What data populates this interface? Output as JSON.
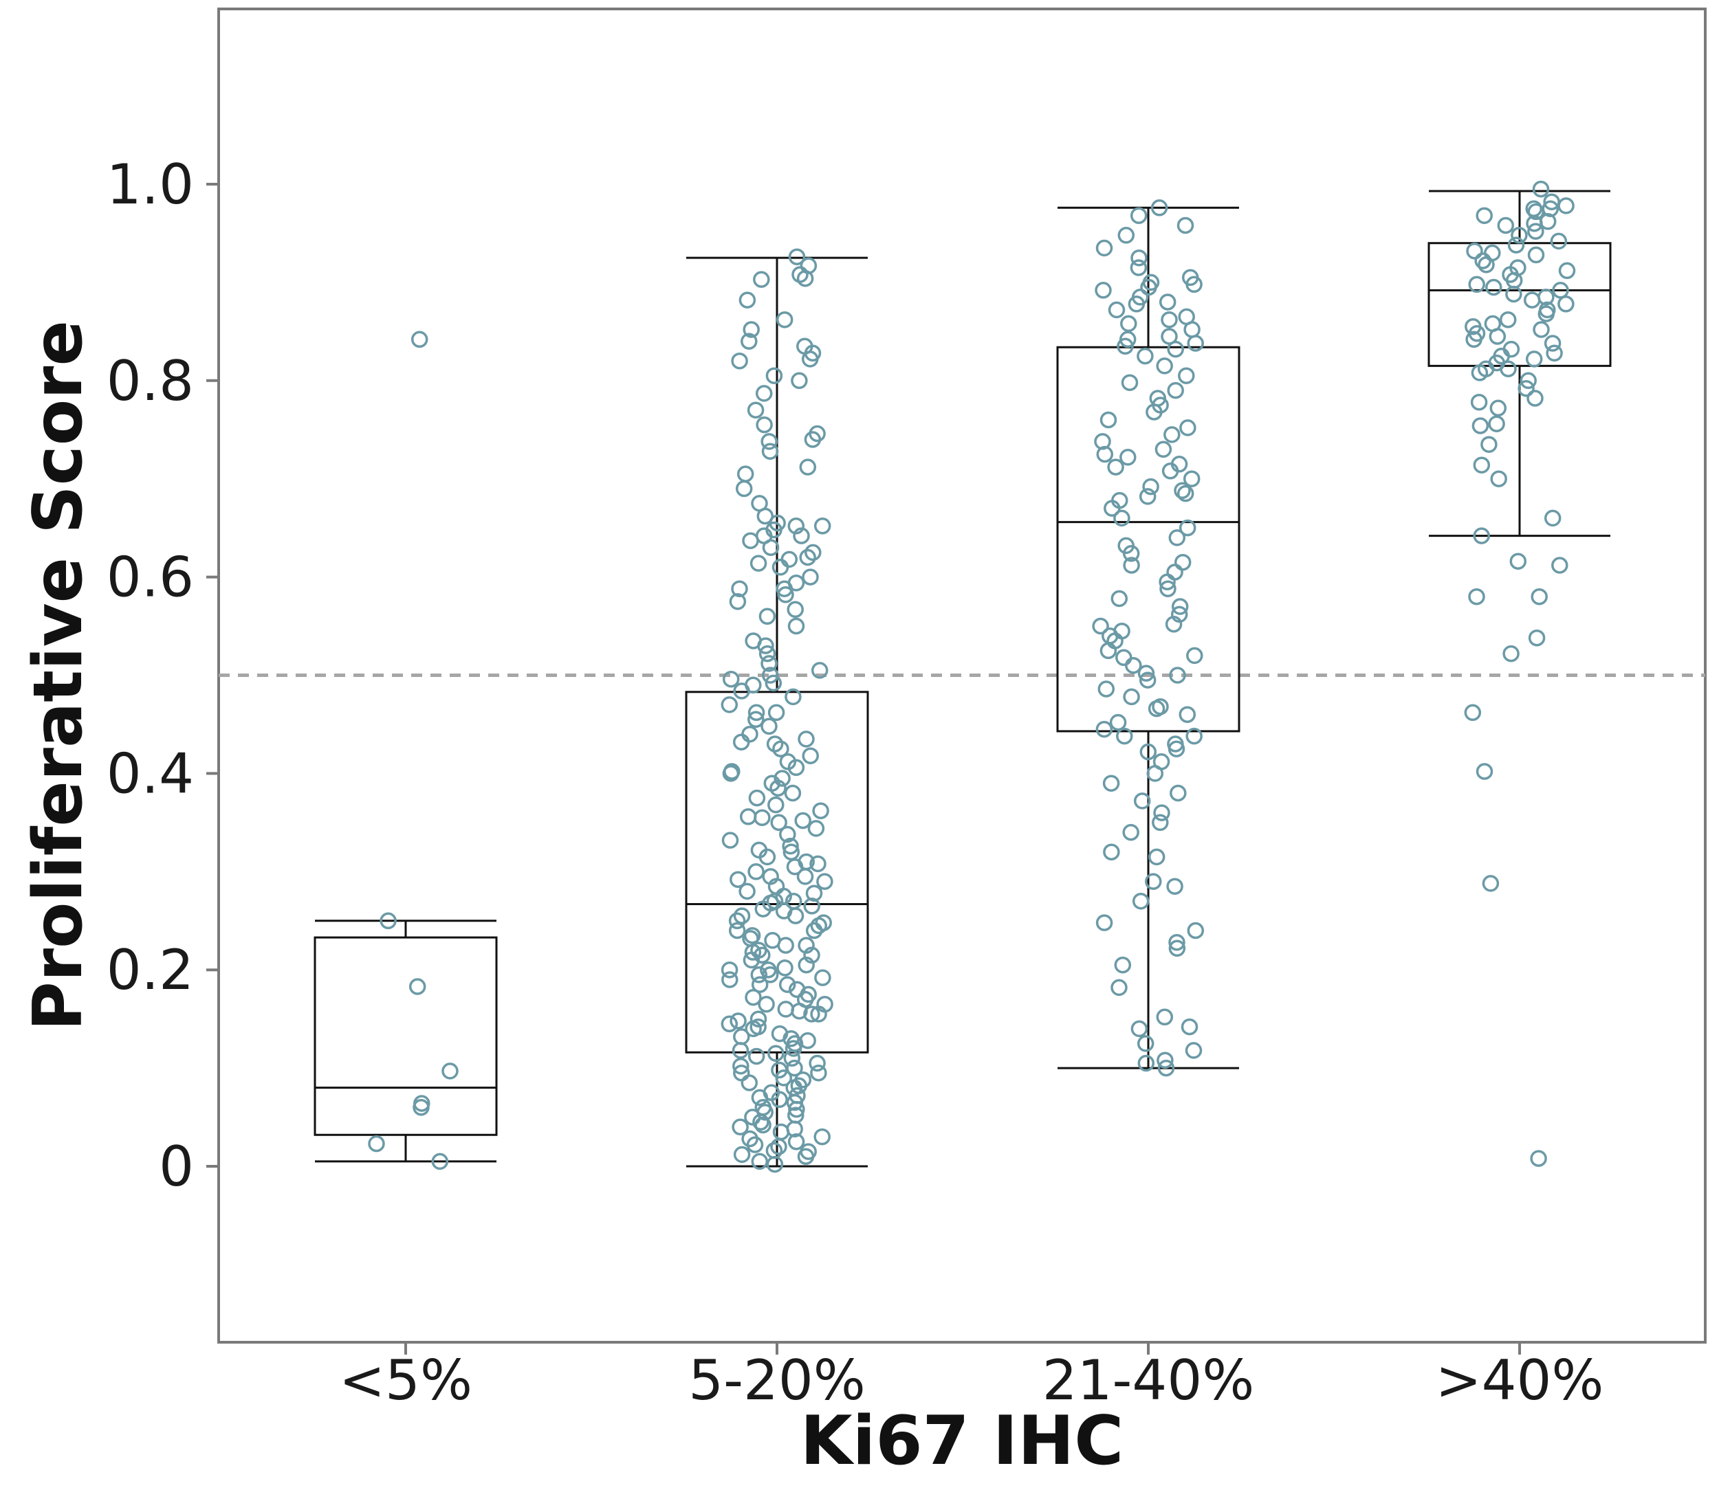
{
  "chart_data": {
    "type": "box",
    "xlabel": "Ki67 IHC",
    "ylabel": "Proliferative Score",
    "ylim": [
      -0.18,
      1.18
    ],
    "yticks": [
      {
        "value": 0,
        "label": "0"
      },
      {
        "value": 0.2,
        "label": "0.2"
      },
      {
        "value": 0.4,
        "label": "0.4"
      },
      {
        "value": 0.6,
        "label": "0.6"
      },
      {
        "value": 0.8,
        "label": "0.8"
      },
      {
        "value": 1.0,
        "label": "1.0"
      }
    ],
    "reference_line": {
      "value": 0.5,
      "style": "dashed",
      "color": "#a6a6a6"
    },
    "point_color": "#6b9aa6",
    "box_color": "#111111",
    "grid": false,
    "legend": "none",
    "categories": [
      "<5%",
      "5-20%",
      "21-40%",
      ">40%"
    ],
    "boxes": [
      {
        "category": "<5%",
        "whisker_low": 0.005,
        "q1": 0.032,
        "median": 0.08,
        "q3": 0.233,
        "whisker_high": 0.25
      },
      {
        "category": "5-20%",
        "whisker_low": 0.0,
        "q1": 0.116,
        "median": 0.267,
        "q3": 0.483,
        "whisker_high": 0.925
      },
      {
        "category": "21-40%",
        "whisker_low": 0.1,
        "q1": 0.443,
        "median": 0.656,
        "q3": 0.834,
        "whisker_high": 0.976
      },
      {
        "category": ">40%",
        "whisker_low": 0.642,
        "q1": 0.815,
        "median": 0.892,
        "q3": 0.94,
        "whisker_high": 0.993
      }
    ],
    "points": [
      {
        "category": "<5%",
        "values": [
          0.842,
          0.25,
          0.183,
          0.097,
          0.064,
          0.06,
          0.023,
          0.005
        ]
      },
      {
        "category": "5-20%",
        "values": [
          0.926,
          0.917,
          0.908,
          0.903,
          0.904,
          0.882,
          0.862,
          0.852,
          0.84,
          0.835,
          0.828,
          0.822,
          0.82,
          0.805,
          0.8,
          0.787,
          0.77,
          0.755,
          0.746,
          0.74,
          0.738,
          0.728,
          0.712,
          0.705,
          0.69,
          0.675,
          0.662,
          0.655,
          0.652,
          0.648,
          0.642,
          0.637,
          0.63,
          0.625,
          0.62,
          0.614,
          0.61,
          0.6,
          0.594,
          0.588,
          0.582,
          0.575,
          0.567,
          0.56,
          0.55,
          0.535,
          0.53,
          0.522,
          0.512,
          0.505,
          0.5,
          0.496,
          0.49,
          0.484,
          0.478,
          0.47,
          0.462,
          0.455,
          0.448,
          0.44,
          0.435,
          0.43,
          0.425,
          0.418,
          0.412,
          0.406,
          0.4,
          0.395,
          0.39,
          0.385,
          0.38,
          0.375,
          0.368,
          0.362,
          0.356,
          0.35,
          0.344,
          0.338,
          0.332,
          0.326,
          0.32,
          0.315,
          0.31,
          0.305,
          0.3,
          0.295,
          0.29,
          0.285,
          0.28,
          0.275,
          0.27,
          0.265,
          0.26,
          0.255,
          0.25,
          0.245,
          0.24,
          0.235,
          0.23,
          0.225,
          0.22,
          0.215,
          0.21,
          0.205,
          0.2,
          0.195,
          0.19,
          0.185,
          0.18,
          0.175,
          0.17,
          0.165,
          0.16,
          0.155,
          0.15,
          0.145,
          0.14,
          0.135,
          0.13,
          0.125,
          0.12,
          0.115,
          0.11,
          0.105,
          0.1,
          0.095,
          0.09,
          0.085,
          0.08,
          0.075,
          0.07,
          0.065,
          0.06,
          0.055,
          0.05,
          0.045,
          0.04,
          0.035,
          0.03,
          0.025,
          0.02,
          0.015,
          0.01,
          0.005,
          0.002,
          0.27,
          0.255,
          0.24,
          0.215,
          0.2,
          0.185,
          0.165,
          0.148,
          0.132,
          0.118,
          0.102,
          0.088,
          0.072,
          0.058,
          0.042,
          0.028,
          0.016,
          0.308,
          0.322,
          0.292,
          0.278,
          0.262,
          0.248,
          0.232,
          0.218,
          0.202,
          0.192,
          0.172,
          0.158,
          0.142,
          0.128,
          0.112,
          0.098,
          0.082,
          0.068,
          0.052,
          0.038,
          0.022,
          0.012,
          0.352,
          0.402,
          0.432,
          0.462,
          0.492,
          0.642,
          0.652,
          0.618,
          0.588,
          0.355,
          0.295,
          0.268,
          0.225,
          0.195,
          0.155,
          0.095
        ]
      },
      {
        "category": "21-40%",
        "values": [
          0.976,
          0.968,
          0.958,
          0.948,
          0.935,
          0.925,
          0.915,
          0.905,
          0.898,
          0.892,
          0.885,
          0.878,
          0.872,
          0.865,
          0.858,
          0.852,
          0.845,
          0.838,
          0.832,
          0.825,
          0.815,
          0.805,
          0.798,
          0.79,
          0.782,
          0.775,
          0.768,
          0.76,
          0.752,
          0.745,
          0.738,
          0.73,
          0.722,
          0.715,
          0.708,
          0.7,
          0.692,
          0.685,
          0.678,
          0.67,
          0.66,
          0.65,
          0.64,
          0.632,
          0.624,
          0.615,
          0.605,
          0.595,
          0.588,
          0.578,
          0.57,
          0.562,
          0.552,
          0.545,
          0.535,
          0.525,
          0.518,
          0.51,
          0.502,
          0.495,
          0.486,
          0.478,
          0.468,
          0.46,
          0.452,
          0.445,
          0.438,
          0.43,
          0.422,
          0.412,
          0.4,
          0.39,
          0.38,
          0.372,
          0.36,
          0.35,
          0.34,
          0.32,
          0.315,
          0.29,
          0.285,
          0.27,
          0.248,
          0.24,
          0.228,
          0.222,
          0.205,
          0.182,
          0.152,
          0.142,
          0.14,
          0.125,
          0.118,
          0.108,
          0.105,
          0.1,
          0.9,
          0.895,
          0.88,
          0.862,
          0.842,
          0.835,
          0.725,
          0.712,
          0.688,
          0.682,
          0.612,
          0.55,
          0.54,
          0.52,
          0.5,
          0.466,
          0.438,
          0.425
        ]
      },
      {
        "category": ">40%",
        "values": [
          0.995,
          0.982,
          0.978,
          0.975,
          0.972,
          0.968,
          0.962,
          0.958,
          0.952,
          0.948,
          0.942,
          0.938,
          0.932,
          0.928,
          0.922,
          0.918,
          0.912,
          0.908,
          0.902,
          0.898,
          0.892,
          0.888,
          0.882,
          0.878,
          0.872,
          0.868,
          0.862,
          0.858,
          0.852,
          0.848,
          0.842,
          0.838,
          0.832,
          0.828,
          0.822,
          0.818,
          0.812,
          0.808,
          0.8,
          0.792,
          0.782,
          0.778,
          0.772,
          0.756,
          0.754,
          0.735,
          0.714,
          0.7,
          0.66,
          0.642,
          0.616,
          0.612,
          0.58,
          0.58,
          0.538,
          0.522,
          0.462,
          0.402,
          0.288,
          0.008,
          0.975,
          0.96,
          0.93,
          0.915,
          0.895,
          0.885,
          0.855,
          0.845,
          0.825,
          0.812
        ]
      }
    ]
  }
}
